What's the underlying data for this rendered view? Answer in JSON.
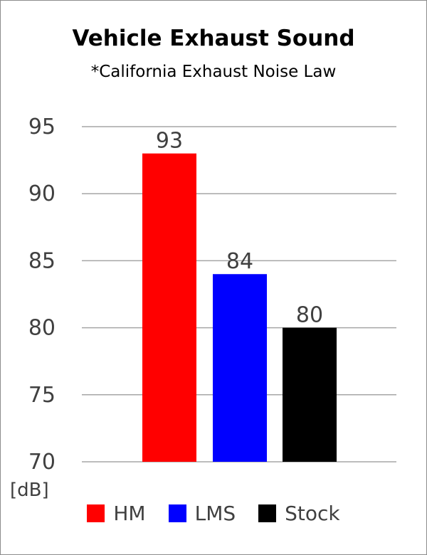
{
  "chart_data": {
    "type": "bar",
    "title": "Vehicle Exhaust Sound",
    "subtitle": "*California Exhaust Noise Law",
    "unit_label": "[dB]",
    "categories": [
      "HM",
      "LMS",
      "Stock"
    ],
    "values": [
      93,
      84,
      80
    ],
    "colors": [
      "#ff0000",
      "#0000ff",
      "#000000"
    ],
    "ylim": [
      70,
      95
    ],
    "yticks": [
      70,
      75,
      80,
      85,
      90,
      95
    ],
    "grid": true,
    "legend_position": "bottom",
    "data_labels": [
      "93",
      "84",
      "80"
    ]
  }
}
